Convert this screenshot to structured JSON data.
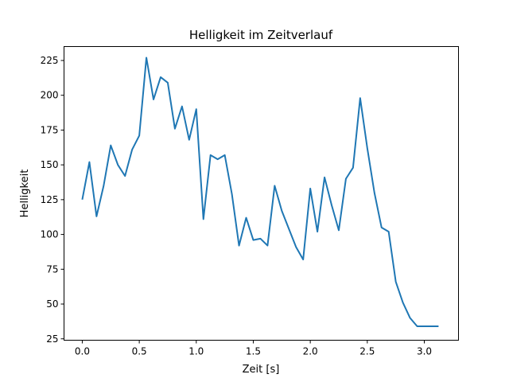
{
  "chart_data": {
    "type": "line",
    "title": "Helligkeit im Zeitverlauf",
    "xlabel": "Zeit [s]",
    "ylabel": "Helligkeit",
    "xlim": [
      -0.16,
      3.3
    ],
    "ylim": [
      24,
      235
    ],
    "xticks": [
      0.0,
      0.5,
      1.0,
      1.5,
      2.0,
      2.5,
      3.0
    ],
    "xtick_labels": [
      "0.0",
      "0.5",
      "1.0",
      "1.5",
      "2.0",
      "2.5",
      "3.0"
    ],
    "yticks": [
      25,
      50,
      75,
      100,
      125,
      150,
      175,
      200,
      225
    ],
    "ytick_labels": [
      "25",
      "50",
      "75",
      "100",
      "125",
      "150",
      "175",
      "200",
      "225"
    ],
    "grid": false,
    "line_color": "#1f77b4",
    "series": [
      {
        "x": [
          0.0,
          0.0625,
          0.125,
          0.1875,
          0.25,
          0.3125,
          0.375,
          0.4375,
          0.5,
          0.5625,
          0.625,
          0.6875,
          0.75,
          0.8125,
          0.875,
          0.9375,
          1.0,
          1.0625,
          1.125,
          1.1875,
          1.25,
          1.3125,
          1.375,
          1.4375,
          1.5,
          1.5625,
          1.625,
          1.6875,
          1.75,
          1.8125,
          1.875,
          1.9375,
          2.0,
          2.0625,
          2.125,
          2.1875,
          2.25,
          2.3125,
          2.375,
          2.4375,
          2.5,
          2.5625,
          2.625,
          2.6875,
          2.75,
          2.8125,
          2.875,
          2.9375,
          3.0,
          3.0625,
          3.125
        ],
        "y": [
          125,
          152,
          113,
          135,
          164,
          150,
          142,
          161,
          171,
          227,
          197,
          213,
          209,
          176,
          192,
          168,
          190,
          111,
          157,
          154,
          157,
          129,
          92,
          112,
          96,
          97,
          92,
          135,
          117,
          104,
          91,
          82,
          133,
          102,
          141,
          121,
          103,
          140,
          148,
          198,
          162,
          130,
          105,
          102,
          66,
          51,
          40,
          34,
          34,
          34,
          34
        ]
      }
    ]
  }
}
